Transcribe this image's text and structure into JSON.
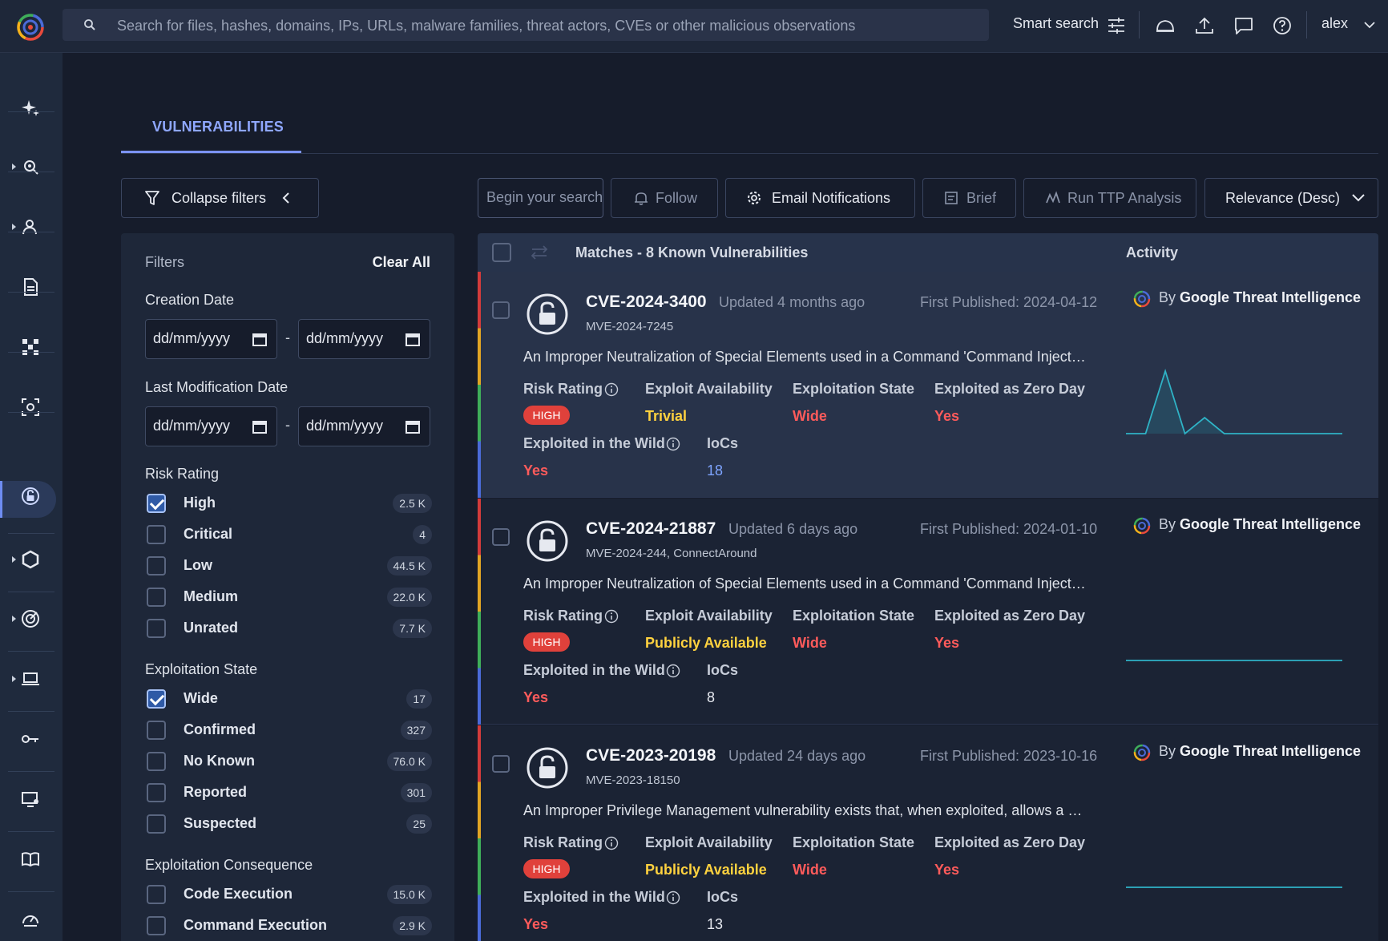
{
  "topbar": {
    "search_placeholder": "Search for files, hashes, domains, IPs, URLs, malware families, threat actors, CVEs or other malicious observations",
    "smart_search_label": "Smart search",
    "user_name": "alex"
  },
  "tabs": {
    "active": "VULNERABILITIES"
  },
  "toolbar": {
    "collapse_filters": "Collapse filters",
    "search_placeholder": "Begin your search",
    "follow": "Follow",
    "email_notifications": "Email Notifications",
    "brief": "Brief",
    "run_ttp": "Run TTP Analysis",
    "sort": "Relevance (Desc)"
  },
  "filters": {
    "title": "Filters",
    "clear_all": "Clear All",
    "creation_date": {
      "label": "Creation Date",
      "from_placeholder": "dd/mm/yyyy",
      "to_placeholder": "dd/mm/yyyy",
      "separator": "-"
    },
    "last_mod_date": {
      "label": "Last Modification Date",
      "from_placeholder": "dd/mm/yyyy",
      "to_placeholder": "dd/mm/yyyy",
      "separator": "-"
    },
    "risk_rating": {
      "label": "Risk Rating",
      "options": [
        {
          "label": "High",
          "count": "2.5 K",
          "checked": true
        },
        {
          "label": "Critical",
          "count": "4",
          "checked": false
        },
        {
          "label": "Low",
          "count": "44.5 K",
          "checked": false
        },
        {
          "label": "Medium",
          "count": "22.0 K",
          "checked": false
        },
        {
          "label": "Unrated",
          "count": "7.7 K",
          "checked": false
        }
      ]
    },
    "exploitation_state": {
      "label": "Exploitation State",
      "options": [
        {
          "label": "Wide",
          "count": "17",
          "checked": true
        },
        {
          "label": "Confirmed",
          "count": "327",
          "checked": false
        },
        {
          "label": "No Known",
          "count": "76.0 K",
          "checked": false
        },
        {
          "label": "Reported",
          "count": "301",
          "checked": false
        },
        {
          "label": "Suspected",
          "count": "25",
          "checked": false
        }
      ]
    },
    "exploitation_consequence": {
      "label": "Exploitation Consequence",
      "options": [
        {
          "label": "Code Execution",
          "count": "15.0 K",
          "checked": false
        },
        {
          "label": "Command Execution",
          "count": "2.9 K",
          "checked": false
        }
      ]
    }
  },
  "results": {
    "title": "Matches - 8 Known Vulnerabilities",
    "activity_header": "Activity",
    "labels": {
      "risk_rating": "Risk Rating",
      "exploit_availability": "Exploit Availability",
      "exploitation_state": "Exploitation State",
      "zero_day": "Exploited as Zero Day",
      "in_the_wild": "Exploited in the Wild",
      "iocs": "IoCs",
      "by_prefix": "By",
      "by_source": "Google Threat Intelligence"
    },
    "items": [
      {
        "cve": "CVE-2024-3400",
        "updated": "Updated 4 months ago",
        "first_published": "First Published: 2024-04-12",
        "alias": "MVE-2024-7245",
        "description": "An Improper Neutralization of Special Elements used in a Command 'Command Inject…",
        "risk": "HIGH",
        "exploit_availability": "Trivial",
        "exploitation_state": "Wide",
        "zero_day": "Yes",
        "in_the_wild": "Yes",
        "iocs": "18",
        "activity": [
          0,
          0,
          78,
          0,
          20,
          0,
          0,
          0,
          0,
          0,
          0,
          0
        ]
      },
      {
        "cve": "CVE-2024-21887",
        "updated": "Updated 6 days ago",
        "first_published": "First Published: 2024-01-10",
        "alias": "MVE-2024-244, ConnectAround",
        "description": "An Improper Neutralization of Special Elements used in a Command 'Command Inject…",
        "risk": "HIGH",
        "exploit_availability": "Publicly Available",
        "exploitation_state": "Wide",
        "zero_day": "Yes",
        "in_the_wild": "Yes",
        "iocs": "8",
        "activity": [
          0,
          0,
          0,
          0,
          0,
          0,
          0,
          0,
          0,
          0,
          0,
          0
        ]
      },
      {
        "cve": "CVE-2023-20198",
        "updated": "Updated 24 days ago",
        "first_published": "First Published: 2023-10-16",
        "alias": "MVE-2023-18150",
        "description": "An Improper Privilege Management vulnerability exists that, when exploited, allows a …",
        "risk": "HIGH",
        "exploit_availability": "Publicly Available",
        "exploitation_state": "Wide",
        "zero_day": "Yes",
        "in_the_wild": "Yes",
        "iocs": "13",
        "activity": [
          0,
          0,
          0,
          0,
          0,
          0,
          0,
          0,
          0,
          0,
          0,
          0
        ]
      }
    ]
  },
  "colors": {
    "accent": "#7c93f5",
    "high": "#e0413b",
    "red_value": "#ff5b5b",
    "yellow_value": "#ffd23f"
  }
}
